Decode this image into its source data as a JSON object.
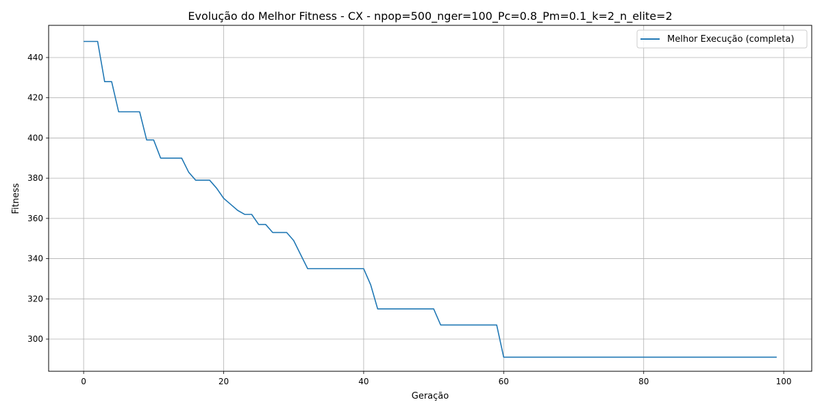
{
  "chart_data": {
    "type": "line",
    "title": "Evolução do Melhor Fitness - CX - npop=500_nger=100_Pc=0.8_Pm=0.1_k=2_n_elite=2",
    "xlabel": "Geração",
    "ylabel": "Fitness",
    "xlim": [
      -5,
      104
    ],
    "ylim": [
      284,
      456
    ],
    "xticks": [
      0,
      20,
      40,
      60,
      80,
      100
    ],
    "yticks": [
      300,
      320,
      340,
      360,
      380,
      400,
      420,
      440
    ],
    "grid": true,
    "legend_position": "top-right",
    "line_color": "#1f77b4",
    "series": [
      {
        "name": "Melhor Execução (completa)",
        "x": [
          0,
          1,
          2,
          3,
          4,
          5,
          6,
          7,
          8,
          9,
          10,
          11,
          12,
          13,
          14,
          15,
          16,
          17,
          18,
          19,
          20,
          21,
          22,
          23,
          24,
          25,
          26,
          27,
          28,
          29,
          30,
          31,
          32,
          33,
          34,
          35,
          36,
          37,
          38,
          39,
          40,
          41,
          42,
          43,
          44,
          45,
          46,
          47,
          48,
          49,
          50,
          51,
          52,
          53,
          54,
          55,
          56,
          57,
          58,
          59,
          60,
          61,
          62,
          63,
          64,
          65,
          66,
          67,
          68,
          69,
          70,
          71,
          72,
          73,
          74,
          75,
          76,
          77,
          78,
          79,
          80,
          81,
          82,
          83,
          84,
          85,
          86,
          87,
          88,
          89,
          90,
          91,
          92,
          93,
          94,
          95,
          96,
          97,
          98,
          99
        ],
        "values": [
          448,
          448,
          448,
          428,
          428,
          413,
          413,
          413,
          413,
          399,
          399,
          390,
          390,
          390,
          390,
          383,
          379,
          379,
          379,
          375,
          370,
          367,
          364,
          362,
          362,
          357,
          357,
          353,
          353,
          353,
          349,
          342,
          335,
          335,
          335,
          335,
          335,
          335,
          335,
          335,
          335,
          327,
          315,
          315,
          315,
          315,
          315,
          315,
          315,
          315,
          315,
          307,
          307,
          307,
          307,
          307,
          307,
          307,
          307,
          307,
          291,
          291,
          291,
          291,
          291,
          291,
          291,
          291,
          291,
          291,
          291,
          291,
          291,
          291,
          291,
          291,
          291,
          291,
          291,
          291,
          291,
          291,
          291,
          291,
          291,
          291,
          291,
          291,
          291,
          291,
          291,
          291,
          291,
          291,
          291,
          291,
          291,
          291,
          291,
          291
        ]
      }
    ]
  }
}
